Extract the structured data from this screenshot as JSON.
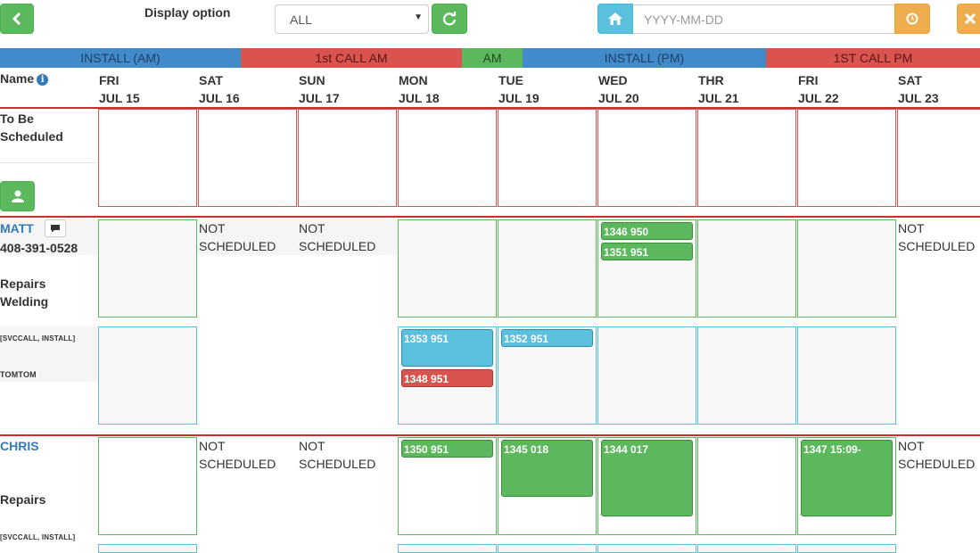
{
  "toolbar": {
    "display_option_label": "Display option",
    "select_value": "ALL",
    "date_placeholder": "YYYY-MM-DD"
  },
  "categories": [
    "INSTALL (AM)",
    "1st CALL AM",
    "AM",
    "INSTALL (PM)",
    "1ST CALL PM"
  ],
  "header": {
    "name_label": "Name",
    "days": [
      {
        "dow": "FRI",
        "date": "JUL 15"
      },
      {
        "dow": "SAT",
        "date": "JUL 16"
      },
      {
        "dow": "SUN",
        "date": "JUL 17"
      },
      {
        "dow": "MON",
        "date": "JUL 18"
      },
      {
        "dow": "TUE",
        "date": "JUL 19"
      },
      {
        "dow": "WED",
        "date": "JUL 20"
      },
      {
        "dow": "THR",
        "date": "JUL 21"
      },
      {
        "dow": "FRI",
        "date": "JUL 22"
      },
      {
        "dow": "SAT",
        "date": "JUL 23"
      }
    ]
  },
  "to_be_scheduled": {
    "label_line1": "To Be",
    "label_line2": "Scheduled"
  },
  "not_scheduled": {
    "line1": "NOT",
    "line2": "SCHEDULED"
  },
  "matt": {
    "name": "MATT",
    "phone": "408-391-0528",
    "skill1": "Repairs",
    "skill2": "Welding",
    "types": "[SVCCALL, INSTALL]",
    "device": "TOMTOM",
    "jobs": {
      "wed_1": "1346 950",
      "wed_2": "1351 951",
      "mon_1": "1353 951",
      "mon_2": "1348 951",
      "tue_1": "1352 951"
    }
  },
  "chris": {
    "name": "CHRIS",
    "skill1": "Repairs",
    "types": "[SVCCALL, INSTALL]",
    "jobs": {
      "mon": "1350 951",
      "tue": "1345 018",
      "wed": "1344 017",
      "fri": "1347 15:09-"
    }
  }
}
